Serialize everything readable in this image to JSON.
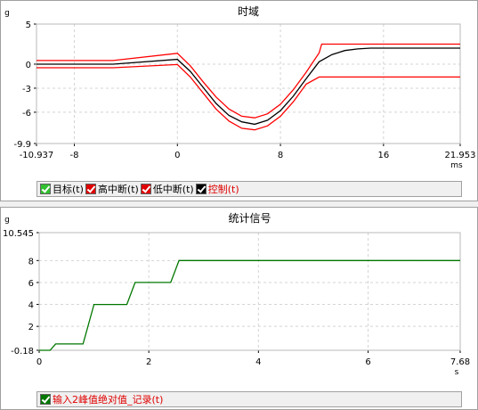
{
  "chart_data": [
    {
      "type": "line",
      "title": "时域",
      "ylabel": "g",
      "xlabel": "ms",
      "xlim": [
        -10.937,
        21.953
      ],
      "ylim": [
        -9.9,
        5
      ],
      "x_ticks": [
        "-10.937",
        "-8",
        "0",
        "8",
        "16",
        "21.953"
      ],
      "y_ticks": [
        "5",
        "0",
        "-3",
        "-6",
        "-9.9"
      ],
      "grid": true,
      "legend_position": "bottom",
      "series": [
        {
          "name": "高中断(t)",
          "color": "#ff0000",
          "x": [
            -10.937,
            -5,
            0,
            1,
            2,
            3,
            4,
            5,
            6,
            7,
            8,
            9,
            10,
            11,
            11.2,
            21.953
          ],
          "y": [
            0.45,
            0.45,
            1.35,
            -0.2,
            -2.2,
            -4.1,
            -5.6,
            -6.5,
            -6.7,
            -6.2,
            -5.0,
            -3.2,
            -1.0,
            1.4,
            2.5,
            2.5
          ]
        },
        {
          "name": "低中断(t)",
          "color": "#ff0000",
          "x": [
            -10.937,
            -5,
            0,
            1,
            2,
            3,
            4,
            5,
            6,
            7,
            8,
            9,
            10,
            11,
            11.2,
            21.953
          ],
          "y": [
            -0.45,
            -0.45,
            -0.05,
            -1.6,
            -3.6,
            -5.6,
            -7.1,
            -8.0,
            -8.2,
            -7.7,
            -6.5,
            -4.7,
            -2.5,
            -1.6,
            -1.6,
            -1.6
          ]
        },
        {
          "name": "控制(t)",
          "color": "#000000",
          "x": [
            -10.937,
            -5,
            0,
            1,
            2,
            3,
            4,
            5,
            6,
            7,
            8,
            9,
            10,
            11,
            12,
            13,
            14,
            15,
            16,
            21.953
          ],
          "y": [
            0,
            0,
            0.6,
            -0.9,
            -2.9,
            -4.9,
            -6.4,
            -7.2,
            -7.5,
            -7.0,
            -5.8,
            -4.0,
            -1.8,
            0.3,
            1.2,
            1.7,
            1.9,
            2.0,
            2.0,
            2.0
          ]
        }
      ]
    },
    {
      "type": "line",
      "title": "统计信号",
      "ylabel": "g",
      "xlabel": "s",
      "xlim": [
        0,
        7.68
      ],
      "ylim": [
        -0.18,
        10.545
      ],
      "x_ticks": [
        "0",
        "2",
        "4",
        "6",
        "7.68"
      ],
      "y_ticks": [
        "10.545",
        "8",
        "6",
        "4",
        "2",
        "-0.18"
      ],
      "grid": true,
      "legend_position": "bottom",
      "series": [
        {
          "name": "输入2峰值绝对值_记录(t)",
          "color": "#007700",
          "x": [
            0,
            0.2,
            0.3,
            0.8,
            1.0,
            1.6,
            1.75,
            2.4,
            2.55,
            7.68
          ],
          "y": [
            -0.18,
            -0.18,
            0.4,
            0.4,
            4.0,
            4.0,
            6.0,
            6.0,
            8.0,
            8.0
          ]
        }
      ]
    }
  ],
  "legend_top": [
    {
      "label": "目标(t)",
      "box_color": "#30c030",
      "text_color": "#000000"
    },
    {
      "label": "高中断(t)",
      "box_color": "#e00000",
      "text_color": "#000000"
    },
    {
      "label": "低中断(t)",
      "box_color": "#e00000",
      "text_color": "#000000"
    },
    {
      "label": "控制(t)",
      "box_color": "#000000",
      "text_color": "#e00000"
    }
  ],
  "legend_bottom": [
    {
      "label": "输入2峰值绝对值_记录(t)",
      "box_color": "#007700",
      "text_color": "#e00000"
    }
  ]
}
